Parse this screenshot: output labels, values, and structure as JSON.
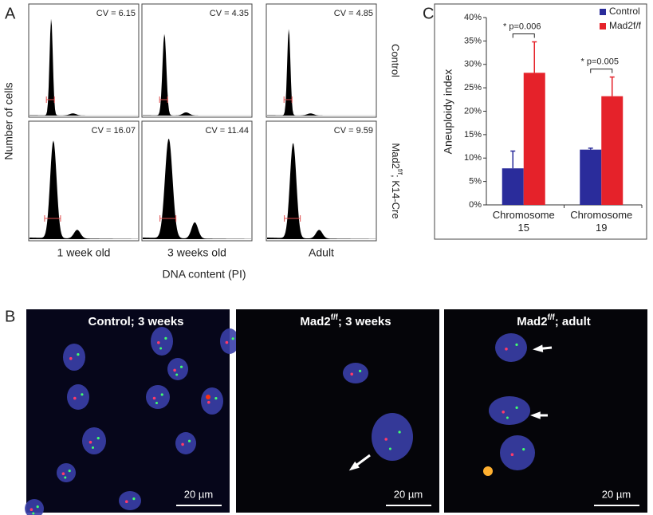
{
  "panel_a": {
    "label": "A",
    "y_label": "Number of cells",
    "x_label": "DNA content (PI)",
    "columns": [
      "1 week old",
      "3 weeks old",
      "Adult"
    ],
    "rows": [
      "Control",
      {
        "text": "Mad2",
        "sup": "f/f",
        "rest": "; K14-Cre"
      }
    ],
    "cv": [
      [
        "CV = 6.15",
        "CV = 4.35",
        "CV = 4.85"
      ],
      [
        "CV = 16.07",
        "CV = 11.44",
        "CV = 9.59"
      ]
    ]
  },
  "panel_b": {
    "label": "B",
    "scale_bar": "20 µm",
    "titles": [
      {
        "text": "Control; 3 weeks"
      },
      {
        "text": "Mad2",
        "sup": "f/f",
        "rest": "; 3 weeks"
      },
      {
        "text": "Mad2",
        "sup": "f/f",
        "rest": "; adult"
      }
    ]
  },
  "chart_data": {
    "panel_label": "C",
    "type": "bar",
    "y_label": "Aneuploidy index",
    "categories": [
      "Chromosome 15",
      "Chromosome 19"
    ],
    "series": [
      {
        "name": "Control",
        "color": "#2a2c9b",
        "values": [
          7.8,
          11.8
        ],
        "errors": [
          3.7,
          0.3
        ]
      },
      {
        "name": "Mad2f/f",
        "color": "#e5222a",
        "values": [
          28.2,
          23.2
        ],
        "errors": [
          6.6,
          4.1
        ]
      }
    ],
    "ylim": [
      0,
      40
    ],
    "yticks": [
      {
        "value": 0,
        "label": "0%"
      },
      {
        "value": 5,
        "label": "5%"
      },
      {
        "value": 10,
        "label": "10%"
      },
      {
        "value": 15,
        "label": "15%"
      },
      {
        "value": 20,
        "label": "20%"
      },
      {
        "value": 25,
        "label": "25%"
      },
      {
        "value": 30,
        "label": "30%"
      },
      {
        "value": 35,
        "label": "35%"
      },
      {
        "value": 40,
        "label": "40%"
      }
    ],
    "annotations": [
      "* p=0.006",
      "* p=0.005"
    ]
  }
}
